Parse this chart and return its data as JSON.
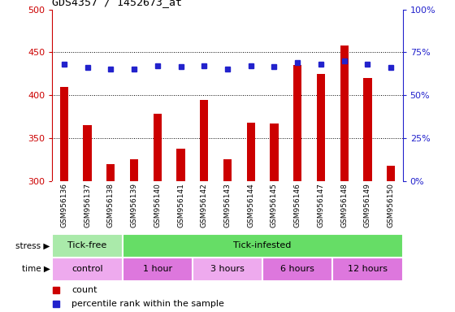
{
  "title": "GDS4357 / 1452673_at",
  "categories": [
    "GSM956136",
    "GSM956137",
    "GSM956138",
    "GSM956139",
    "GSM956140",
    "GSM956141",
    "GSM956142",
    "GSM956143",
    "GSM956144",
    "GSM956145",
    "GSM956146",
    "GSM956147",
    "GSM956148",
    "GSM956149",
    "GSM956150"
  ],
  "counts": [
    410,
    365,
    320,
    325,
    378,
    338,
    394,
    325,
    368,
    367,
    435,
    425,
    458,
    420,
    318
  ],
  "percentiles": [
    68,
    66,
    65,
    65,
    67,
    66.5,
    67,
    65,
    67,
    66.5,
    69,
    68,
    70,
    68,
    66
  ],
  "ylim_left": [
    300,
    500
  ],
  "ylim_right": [
    0,
    100
  ],
  "yticks_left": [
    300,
    350,
    400,
    450,
    500
  ],
  "yticks_right": [
    0,
    25,
    50,
    75,
    100
  ],
  "bar_color": "#cc0000",
  "dot_color": "#2222cc",
  "stress_groups": [
    {
      "label": "Tick-free",
      "start": 0,
      "end": 3,
      "color": "#aaeaaa"
    },
    {
      "label": "Tick-infested",
      "start": 3,
      "end": 15,
      "color": "#66dd66"
    }
  ],
  "time_groups": [
    {
      "label": "control",
      "start": 0,
      "end": 3,
      "color": "#eeaaee"
    },
    {
      "label": "1 hour",
      "start": 3,
      "end": 6,
      "color": "#dd77dd"
    },
    {
      "label": "3 hours",
      "start": 6,
      "end": 9,
      "color": "#eeaaee"
    },
    {
      "label": "6 hours",
      "start": 9,
      "end": 12,
      "color": "#dd77dd"
    },
    {
      "label": "12 hours",
      "start": 12,
      "end": 15,
      "color": "#dd77dd"
    }
  ],
  "left_axis_color": "#cc0000",
  "right_axis_color": "#2222cc",
  "bg_color": "#d8d8d8",
  "legend_items": [
    {
      "label": "count",
      "color": "#cc0000"
    },
    {
      "label": "percentile rank within the sample",
      "color": "#2222cc"
    }
  ],
  "bar_width": 0.35,
  "figsize": [
    5.6,
    3.84
  ],
  "dpi": 100
}
